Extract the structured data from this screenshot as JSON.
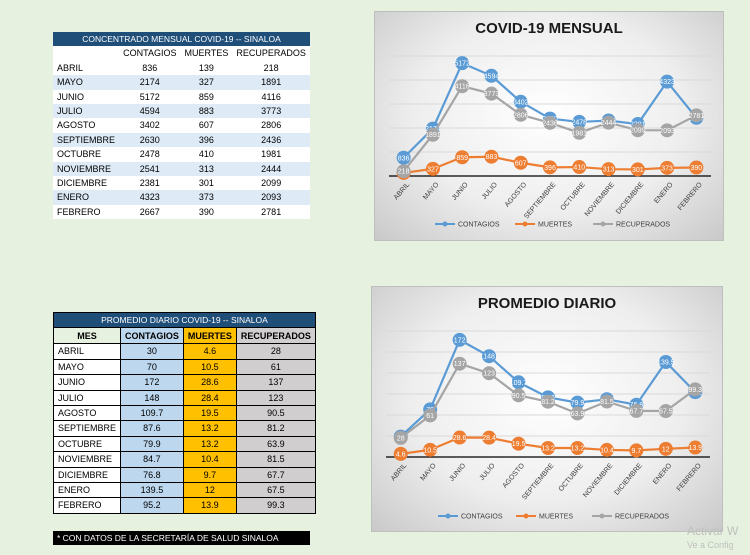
{
  "table_mensual": {
    "caption": "CONCENTRADO MENSUAL COVID-19 -- SINALOA",
    "headers": [
      "",
      "CONTAGIOS",
      "MUERTES",
      "RECUPERADOS"
    ],
    "rows": [
      [
        "ABRIL",
        "836",
        "139",
        "218"
      ],
      [
        "MAYO",
        "2174",
        "327",
        "1891"
      ],
      [
        "JUNIO",
        "5172",
        "859",
        "4116"
      ],
      [
        "JULIO",
        "4594",
        "883",
        "3773"
      ],
      [
        "AGOSTO",
        "3402",
        "607",
        "2806"
      ],
      [
        "SEPTIEMBRE",
        "2630",
        "396",
        "2436"
      ],
      [
        "OCTUBRE",
        "2478",
        "410",
        "1981"
      ],
      [
        "NOVIEMBRE",
        "2541",
        "313",
        "2444"
      ],
      [
        "DICIEMBRE",
        "2381",
        "301",
        "2099"
      ],
      [
        "ENERO",
        "4323",
        "373",
        "2093"
      ],
      [
        "FEBRERO",
        "2667",
        "390",
        "2781"
      ]
    ]
  },
  "table_diario": {
    "caption": "PROMEDIO DIARIO COVID-19 -- SINALOA",
    "headers": [
      "MES",
      "CONTAGIOS",
      "MUERTES",
      "RECUPERADOS"
    ],
    "rows": [
      [
        "ABRIL",
        "30",
        "4.6",
        "28"
      ],
      [
        "MAYO",
        "70",
        "10.5",
        "61"
      ],
      [
        "JUNIO",
        "172",
        "28.6",
        "137"
      ],
      [
        "JULIO",
        "148",
        "28.4",
        "123"
      ],
      [
        "AGOSTO",
        "109.7",
        "19.5",
        "90.5"
      ],
      [
        "SEPTIEMBRE",
        "87.6",
        "13.2",
        "81.2"
      ],
      [
        "OCTUBRE",
        "79.9",
        "13.2",
        "63.9"
      ],
      [
        "NOVIEMBRE",
        "84.7",
        "10.4",
        "81.5"
      ],
      [
        "DICIEMBRE",
        "76.8",
        "9.7",
        "67.7"
      ],
      [
        "ENERO",
        "139.5",
        "12",
        "67.5"
      ],
      [
        "FEBRERO",
        "95.2",
        "13.9",
        "99.3"
      ]
    ]
  },
  "note": "* CON DATOS DE LA SECRETARÍA DE SALUD SINALOA",
  "watermark": {
    "line1": "Activar W",
    "line2": "Ve a Config"
  },
  "chart_data": [
    {
      "type": "line",
      "title": "COVID-19 MENSUAL",
      "categories": [
        "ABRIL",
        "MAYO",
        "JUNIO",
        "JULIO",
        "AGOSTO",
        "SEPTIEMBRE",
        "OCTUBRE",
        "NOVIEMBRE",
        "DICIEMBRE",
        "ENERO",
        "FEBRERO"
      ],
      "series": [
        {
          "name": "CONTAGIOS",
          "color": "#5b9bd5",
          "values": [
            836,
            2174,
            5172,
            4594,
            3402,
            2630,
            2478,
            2541,
            2381,
            4323,
            2667
          ]
        },
        {
          "name": "MUERTES",
          "color": "#ed7d31",
          "values": [
            139,
            327,
            859,
            883,
            607,
            396,
            410,
            313,
            301,
            373,
            390
          ]
        },
        {
          "name": "RECUPERADOS",
          "color": "#a5a5a5",
          "values": [
            218,
            1891,
            4116,
            3773,
            2806,
            2436,
            1981,
            2444,
            2099,
            2093,
            2781
          ]
        }
      ],
      "ylim": [
        0,
        5500
      ],
      "grid": true,
      "legend": "bottom",
      "data_labels": true
    },
    {
      "type": "line",
      "title": "PROMEDIO DIARIO",
      "categories": [
        "ABRIL",
        "MAYO",
        "JUNIO",
        "JULIO",
        "AGOSTO",
        "SEPTIEMBRE",
        "OCTUBRE",
        "NOVIEMBRE",
        "DICIEMBRE",
        "ENERO",
        "FEBRERO"
      ],
      "series": [
        {
          "name": "CONTAGIOS",
          "color": "#5b9bd5",
          "values": [
            30,
            70,
            172,
            148,
            109.7,
            87.6,
            79.9,
            84.7,
            76.8,
            139.5,
            95.2
          ]
        },
        {
          "name": "MUERTES",
          "color": "#ed7d31",
          "values": [
            4.6,
            10.5,
            28.6,
            28.4,
            19.5,
            13.2,
            13.2,
            10.4,
            9.7,
            12,
            13.9
          ]
        },
        {
          "name": "RECUPERADOS",
          "color": "#a5a5a5",
          "values": [
            28,
            61,
            137,
            123,
            90.5,
            81.2,
            63.9,
            81.5,
            67.7,
            67.5,
            99.3
          ]
        }
      ],
      "ylim": [
        0,
        185
      ],
      "grid": true,
      "legend": "bottom",
      "data_labels": true
    }
  ]
}
